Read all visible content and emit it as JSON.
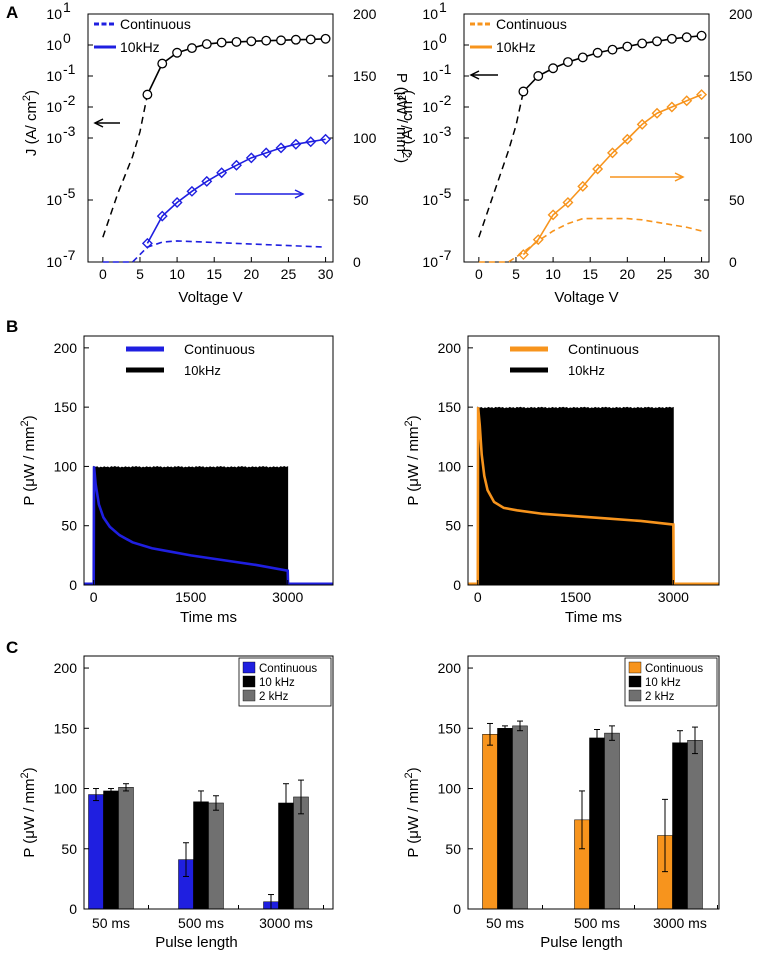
{
  "panel_letters": [
    "A",
    "B",
    "C"
  ],
  "colors": {
    "blue": "#1f1fe0",
    "orange": "#f7941d",
    "black": "#000000",
    "gray": "#707070"
  },
  "chart_data": [
    {
      "id": "A-left",
      "type": "line",
      "accent": "blue",
      "xlabel": "Voltage V",
      "ylabel": "J (A/ cm",
      "ylabel_sup": "2",
      "ylabel_end": ")",
      "y2label": "P (μW / mm",
      "y2label_sup": "2",
      "y2label_end": ")",
      "xticks": [
        "0",
        "5",
        "10",
        "15",
        "20",
        "25",
        "30"
      ],
      "yticks_left": [
        {
          "base": "10",
          "exp": "1"
        },
        {
          "base": "10",
          "exp": "0"
        },
        {
          "base": "10",
          "exp": "-1"
        },
        {
          "base": "10",
          "exp": "-2"
        },
        {
          "base": "10",
          "exp": "-3"
        },
        {
          "base": "10",
          "exp": "-5"
        },
        {
          "base": "10",
          "exp": "-7"
        }
      ],
      "yticks_right": [
        "200",
        "150",
        "100",
        "50",
        "0"
      ],
      "legend": [
        "Continuous",
        "10kHz"
      ],
      "xlim": [
        -2,
        31
      ],
      "log10_ylim": [
        -7,
        1
      ],
      "y2lim": [
        0,
        200
      ],
      "J_dashed": {
        "x": [
          0,
          2,
          4,
          5,
          6
        ],
        "log10_y": [
          -6.2,
          -4.8,
          -3.6,
          -2.8,
          -1.6
        ]
      },
      "J_solid_markers": {
        "x": [
          6,
          8,
          10,
          12,
          14,
          16,
          18,
          20,
          22,
          24,
          26,
          28,
          30
        ],
        "log10_y": [
          -1.6,
          -0.6,
          -0.25,
          -0.1,
          0.03,
          0.08,
          0.1,
          0.12,
          0.14,
          0.15,
          0.17,
          0.18,
          0.2
        ]
      },
      "P_10kHz": {
        "x": [
          6,
          8,
          10,
          12,
          14,
          16,
          18,
          20,
          22,
          24,
          26,
          28,
          30
        ],
        "y": [
          15,
          37,
          48,
          57,
          65,
          72,
          78,
          84,
          88,
          92,
          95,
          97,
          99
        ]
      },
      "P_continuous": {
        "x": [
          0,
          4,
          6,
          8,
          10,
          14,
          18,
          22,
          26,
          30
        ],
        "y": [
          0,
          0,
          12,
          16,
          17,
          16,
          15,
          14,
          13,
          12
        ]
      },
      "annotations": [
        "arrow toward left axis (J)",
        "arrow toward right axis (P)"
      ]
    },
    {
      "id": "A-right",
      "type": "line",
      "accent": "orange",
      "xlabel": "Voltage V",
      "ylabel": "J (A/ cm",
      "ylabel_sup": "2",
      "ylabel_end": ")",
      "y2label": "P (μW / mm",
      "y2label_sup": "2",
      "y2label_end": ")",
      "xticks": [
        "0",
        "5",
        "10",
        "15",
        "20",
        "25",
        "30"
      ],
      "yticks_left": [
        {
          "base": "10",
          "exp": "1"
        },
        {
          "base": "10",
          "exp": "0"
        },
        {
          "base": "10",
          "exp": "-1"
        },
        {
          "base": "10",
          "exp": "-2"
        },
        {
          "base": "10",
          "exp": "-3"
        },
        {
          "base": "10",
          "exp": "-5"
        },
        {
          "base": "10",
          "exp": "-7"
        }
      ],
      "yticks_right": [
        "200",
        "150",
        "100",
        "50",
        "0"
      ],
      "legend": [
        "Continuous",
        "10kHz"
      ],
      "xlim": [
        -2,
        31
      ],
      "log10_ylim": [
        -7,
        1
      ],
      "y2lim": [
        0,
        200
      ],
      "J_dashed": {
        "x": [
          0,
          2,
          4,
          5,
          6
        ],
        "log10_y": [
          -6.2,
          -4.8,
          -3.4,
          -2.6,
          -1.5
        ]
      },
      "J_solid_markers": {
        "x": [
          6,
          8,
          10,
          12,
          14,
          16,
          18,
          20,
          22,
          24,
          26,
          28,
          30
        ],
        "log10_y": [
          -1.5,
          -1.0,
          -0.75,
          -0.55,
          -0.4,
          -0.25,
          -0.15,
          -0.05,
          0.05,
          0.12,
          0.2,
          0.25,
          0.3
        ]
      },
      "P_10kHz": {
        "x": [
          6,
          8,
          10,
          12,
          14,
          16,
          18,
          20,
          22,
          24,
          26,
          28,
          30
        ],
        "y": [
          6,
          18,
          38,
          48,
          61,
          75,
          88,
          99,
          111,
          120,
          125,
          130,
          135
        ]
      },
      "P_continuous": {
        "x": [
          0,
          4,
          6,
          8,
          10,
          12,
          14,
          16,
          18,
          20,
          22,
          24,
          26,
          28,
          30
        ],
        "y": [
          0,
          0,
          8,
          17,
          25,
          31,
          35,
          35,
          35,
          35,
          34,
          32,
          30,
          28,
          25
        ]
      },
      "annotations": [
        "arrow toward left axis (J)",
        "arrow toward right axis (P)"
      ]
    },
    {
      "id": "B-left",
      "type": "area",
      "accent": "blue",
      "xlabel": "Time ms",
      "ylabel": "P  (μW / mm",
      "ylabel_sup": "2",
      "ylabel_end": ")",
      "xticks": [
        "0",
        "1500",
        "3000"
      ],
      "xtick_values": [
        0,
        1500,
        3000
      ],
      "yticks": [
        "0",
        "50",
        "100",
        "150",
        "200"
      ],
      "ytick_values": [
        0,
        50,
        100,
        150,
        200
      ],
      "xlim": [
        -150,
        3700
      ],
      "ylim": [
        0,
        210
      ],
      "legend": [
        "Continuous",
        "10kHz"
      ],
      "pulse_train_10kHz": {
        "start": 0,
        "end": 3000,
        "max": 100
      },
      "continuous": {
        "x": [
          -150,
          0,
          5,
          30,
          80,
          150,
          250,
          400,
          600,
          900,
          1200,
          1500,
          2000,
          2500,
          3000,
          3005,
          3700
        ],
        "y": [
          1,
          1,
          100,
          85,
          68,
          57,
          49,
          42,
          36,
          31,
          28,
          25,
          21,
          17,
          12,
          1,
          1
        ]
      }
    },
    {
      "id": "B-right",
      "type": "area",
      "accent": "orange",
      "xlabel": "Time ms",
      "ylabel": "P  (μW / mm",
      "ylabel_sup": "2",
      "ylabel_end": ")",
      "xticks": [
        "0",
        "1500",
        "3000"
      ],
      "xtick_values": [
        0,
        1500,
        3000
      ],
      "yticks": [
        "0",
        "50",
        "100",
        "150",
        "200"
      ],
      "ytick_values": [
        0,
        50,
        100,
        150,
        200
      ],
      "xlim": [
        -150,
        3700
      ],
      "ylim": [
        0,
        210
      ],
      "legend": [
        "Continuous",
        "10kHz"
      ],
      "pulse_train_10kHz": {
        "start": 0,
        "end": 3000,
        "max": 150
      },
      "continuous": {
        "x": [
          -150,
          0,
          5,
          30,
          60,
          100,
          150,
          250,
          400,
          600,
          1000,
          1500,
          2000,
          2500,
          3000,
          3005,
          3700
        ],
        "y": [
          1,
          1,
          150,
          135,
          110,
          92,
          80,
          70,
          65,
          63,
          60,
          58,
          56,
          54,
          51,
          1,
          1
        ]
      }
    },
    {
      "id": "C-left",
      "type": "bar",
      "accent": "blue",
      "xlabel": "Pulse length",
      "ylabel": "P  (μW / mm",
      "ylabel_sup": "2",
      "ylabel_end": ")",
      "categories": [
        "50 ms",
        "500 ms",
        "3000 ms"
      ],
      "yticks": [
        "0",
        "50",
        "100",
        "150",
        "200"
      ],
      "ytick_values": [
        0,
        50,
        100,
        150,
        200
      ],
      "ylim": [
        0,
        210
      ],
      "legend": [
        "Continuous",
        "10 kHz",
        "2 kHz"
      ],
      "series": [
        {
          "name": "Continuous",
          "values": [
            95,
            41,
            6
          ],
          "err": [
            5,
            14,
            6
          ]
        },
        {
          "name": "10 kHz",
          "values": [
            98,
            89,
            88
          ],
          "err": [
            2,
            9,
            16
          ]
        },
        {
          "name": "2 kHz",
          "values": [
            101,
            88,
            93
          ],
          "err": [
            3,
            6,
            14
          ]
        }
      ]
    },
    {
      "id": "C-right",
      "type": "bar",
      "accent": "orange",
      "xlabel": "Pulse length",
      "ylabel": "P  (μW / mm",
      "ylabel_sup": "2",
      "ylabel_end": ")",
      "categories": [
        "50 ms",
        "500 ms",
        "3000 ms"
      ],
      "yticks": [
        "0",
        "50",
        "100",
        "150",
        "200"
      ],
      "ytick_values": [
        0,
        50,
        100,
        150,
        200
      ],
      "ylim": [
        0,
        210
      ],
      "legend": [
        "Continuous",
        "10 kHz",
        "2 kHz"
      ],
      "series": [
        {
          "name": "Continuous",
          "values": [
            145,
            74,
            61
          ],
          "err": [
            9,
            24,
            30
          ]
        },
        {
          "name": "10 kHz",
          "values": [
            150,
            142,
            138
          ],
          "err": [
            2,
            7,
            10
          ]
        },
        {
          "name": "2 kHz",
          "values": [
            152,
            146,
            140
          ],
          "err": [
            4,
            6,
            11
          ]
        }
      ]
    }
  ]
}
